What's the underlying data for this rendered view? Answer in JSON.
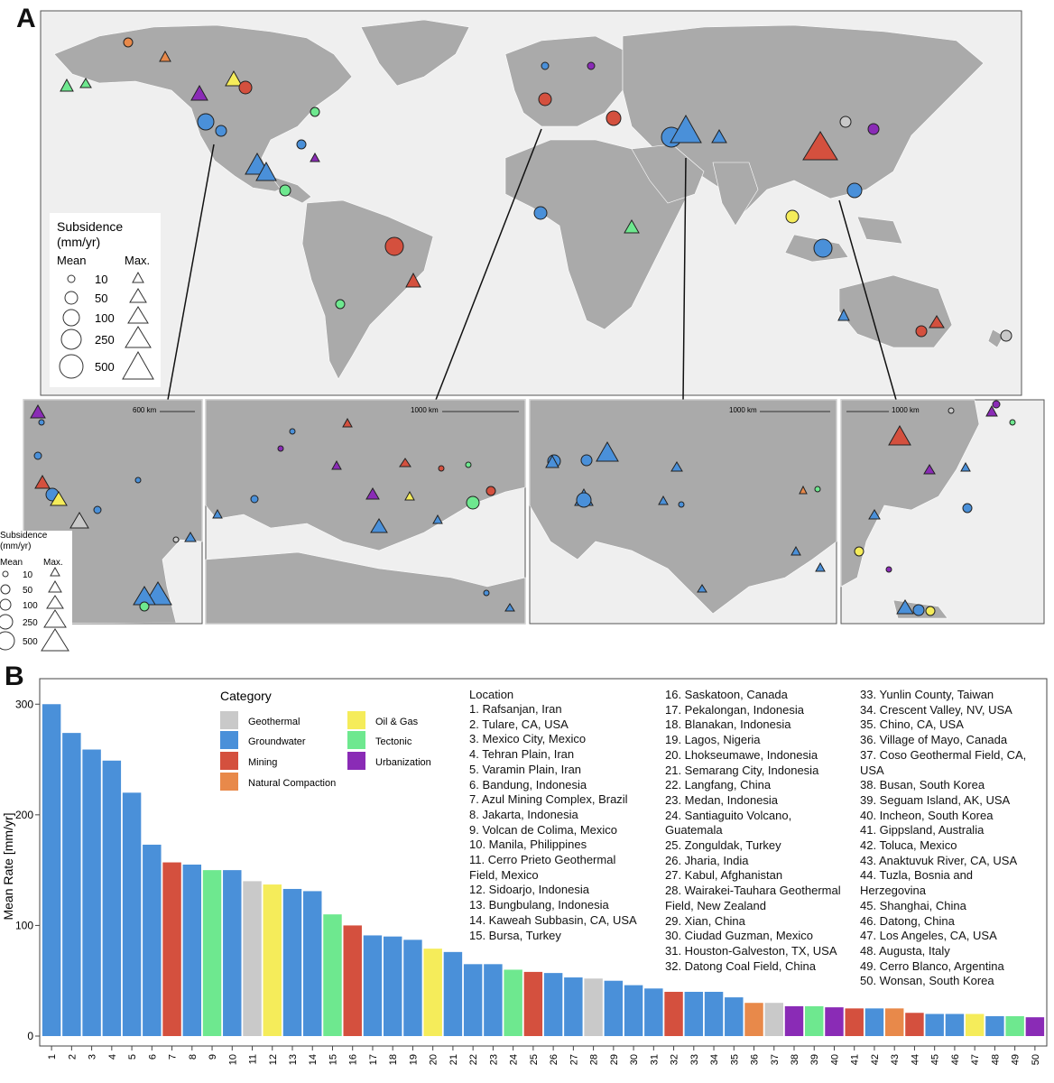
{
  "panel_a": {
    "label": "A",
    "map_legend": {
      "title_line1": "Subsidence",
      "title_line2": "(mm/yr)",
      "mean_label": "Mean",
      "max_label": "Max.",
      "sizes": [
        "10",
        "50",
        "100",
        "250",
        "500"
      ]
    },
    "inset_legend": {
      "title_line1": "Subsidence",
      "title_line2": "(mm/yr)",
      "mean_label": "Mean",
      "max_label": "Max.",
      "sizes": [
        "10",
        "50",
        "100",
        "250",
        "500"
      ]
    },
    "scale_bars": [
      "600 km",
      "1000 km",
      "1000 km",
      "1000 km"
    ]
  },
  "colors": {
    "Geothermal": "#c9c9c9",
    "Groundwater": "#4a90d9",
    "Mining": "#d4503e",
    "Natural Compaction": "#e8894a",
    "Oil & Gas": "#f5ec5a",
    "Tectonic": "#6ee88f",
    "Urbanization": "#8a2bb6"
  },
  "panel_b": {
    "label": "B",
    "legend_title": "Category",
    "location_title": "Location",
    "chart_data": {
      "type": "bar",
      "ylabel": "Mean Rate [mm/yr]",
      "ylim": [
        0,
        310
      ],
      "yticks": [
        0,
        100,
        200,
        300
      ],
      "categories": [
        "1",
        "2",
        "3",
        "4",
        "5",
        "6",
        "7",
        "8",
        "9",
        "10",
        "11",
        "12",
        "13",
        "14",
        "15",
        "16",
        "17",
        "18",
        "19",
        "20",
        "21",
        "22",
        "23",
        "24",
        "25",
        "26",
        "27",
        "28",
        "29",
        "30",
        "31",
        "32",
        "33",
        "34",
        "35",
        "36",
        "37",
        "38",
        "39",
        "40",
        "41",
        "42",
        "43",
        "44",
        "45",
        "46",
        "47",
        "48",
        "49",
        "50"
      ],
      "values": [
        300,
        274,
        259,
        249,
        220,
        173,
        157,
        155,
        150,
        150,
        140,
        137,
        133,
        131,
        110,
        100,
        91,
        90,
        87,
        79,
        76,
        65,
        65,
        60,
        58,
        57,
        53,
        52,
        50,
        46,
        43,
        40,
        40,
        40,
        35,
        30,
        30,
        27,
        27,
        26,
        25,
        25,
        25,
        21,
        20,
        20,
        20,
        18,
        18,
        17
      ],
      "category_of_bar": [
        "Groundwater",
        "Groundwater",
        "Groundwater",
        "Groundwater",
        "Groundwater",
        "Groundwater",
        "Mining",
        "Groundwater",
        "Tectonic",
        "Groundwater",
        "Geothermal",
        "Oil & Gas",
        "Groundwater",
        "Groundwater",
        "Tectonic",
        "Mining",
        "Groundwater",
        "Groundwater",
        "Groundwater",
        "Oil & Gas",
        "Groundwater",
        "Groundwater",
        "Groundwater",
        "Tectonic",
        "Mining",
        "Groundwater",
        "Groundwater",
        "Geothermal",
        "Groundwater",
        "Groundwater",
        "Groundwater",
        "Mining",
        "Groundwater",
        "Groundwater",
        "Groundwater",
        "Natural Compaction",
        "Geothermal",
        "Urbanization",
        "Tectonic",
        "Urbanization",
        "Mining",
        "Groundwater",
        "Natural Compaction",
        "Mining",
        "Groundwater",
        "Groundwater",
        "Oil & Gas",
        "Groundwater",
        "Tectonic",
        "Urbanization"
      ],
      "legend": [
        "Geothermal",
        "Groundwater",
        "Mining",
        "Natural Compaction",
        "Oil & Gas",
        "Tectonic",
        "Urbanization"
      ]
    },
    "locations_col1": [
      "1. Rafsanjan, Iran",
      "2. Tulare, CA, USA",
      "3. Mexico City, Mexico",
      "4. Tehran Plain, Iran",
      "5. Varamin Plain, Iran",
      "6. Bandung, Indonesia",
      "7. Azul Mining Complex, Brazil",
      "8. Jakarta, Indonesia",
      "9. Volcan de Colima, Mexico",
      "10. Manila, Philippines",
      "11. Cerro Prieto Geothermal",
      "Field, Mexico",
      "12. Sidoarjo, Indonesia",
      "13. Bungbulang, Indonesia",
      "14. Kaweah Subbasin, CA, USA",
      "15. Bursa, Turkey"
    ],
    "locations_col2": [
      "16. Saskatoon, Canada",
      "17. Pekalongan, Indonesia",
      "18. Blanakan, Indonesia",
      "19. Lagos, Nigeria",
      "20. Lhokseumawe, Indonesia",
      "21. Semarang City, Indonesia",
      "22. Langfang, China",
      "23. Medan, Indonesia",
      "24. Santiaguito Volcano,",
      "Guatemala",
      "25. Zonguldak, Turkey",
      "26. Jharia, India",
      "27. Kabul, Afghanistan",
      "28. Wairakei-Tauhara Geothermal",
      "Field, New Zealand",
      "29. Xian, China",
      "30. Ciudad Guzman, Mexico",
      "31. Houston-Galveston, TX, USA",
      "32. Datong Coal Field, China"
    ],
    "locations_col3": [
      "33. Yunlin County, Taiwan",
      "34. Crescent Valley, NV, USA",
      "35. Chino, CA, USA",
      "36. Village of Mayo, Canada",
      "37. Coso Geothermal Field, CA,",
      "USA",
      "38. Busan, South Korea",
      "39. Seguam Island, AK, USA",
      "40. Incheon, South Korea",
      "41. Gippsland, Australia",
      "42. Toluca, Mexico",
      "43. Anaktuvuk River, CA, USA",
      "44. Tuzla, Bosnia and",
      "Herzegovina",
      "45. Shanghai, China",
      "46. Datong, China",
      "47. Los Angeles, CA, USA",
      "48. Augusta, Italy",
      "49. Cerro Blanco, Argentina",
      "50. Wonsan, South Korea"
    ]
  }
}
